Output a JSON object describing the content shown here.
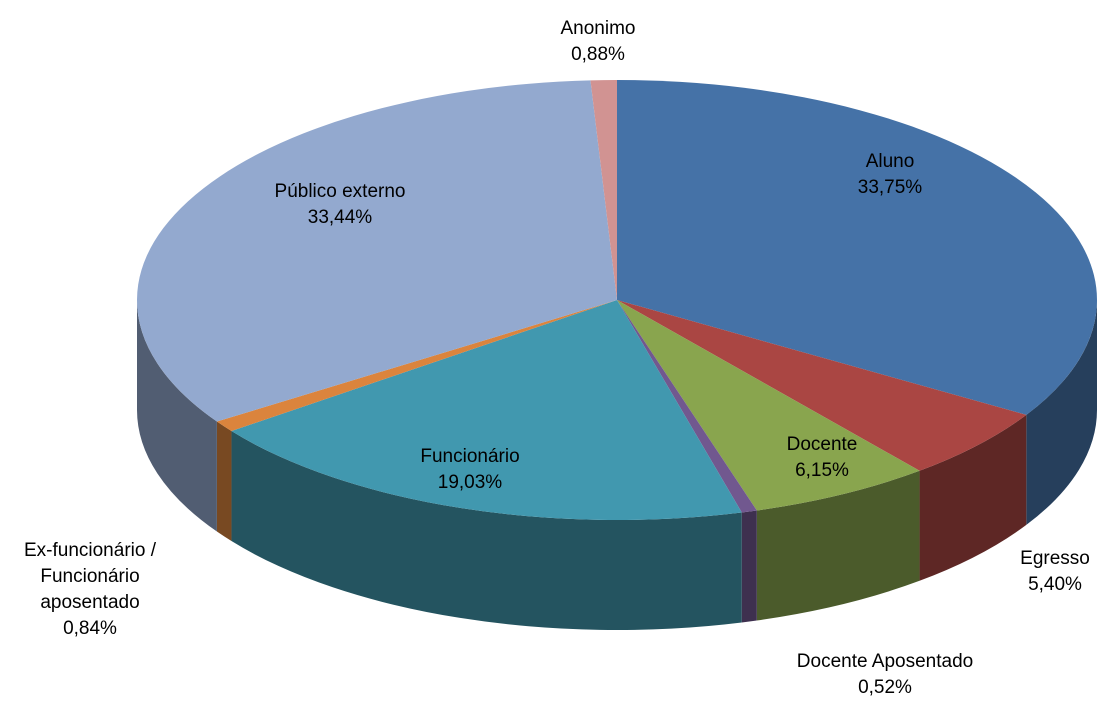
{
  "chart_data": {
    "type": "pie3d",
    "categories": [
      "Aluno",
      "Egresso",
      "Docente",
      "Docente Aposentado",
      "Funcionário",
      "Ex-funcionário / Funcionário aposentado",
      "Público externo",
      "Anonimo"
    ],
    "values": [
      33.75,
      5.4,
      6.15,
      0.52,
      19.03,
      0.84,
      33.44,
      0.88
    ],
    "value_labels": [
      "33,75%",
      "5,40%",
      "6,15%",
      "0,52%",
      "19,03%",
      "0,84%",
      "33,44%",
      "0,88%"
    ],
    "colors": [
      "#4572a7",
      "#aa4643",
      "#89a54e",
      "#71588f",
      "#4198af",
      "#db843d",
      "#93a9cf",
      "#d19392"
    ]
  }
}
